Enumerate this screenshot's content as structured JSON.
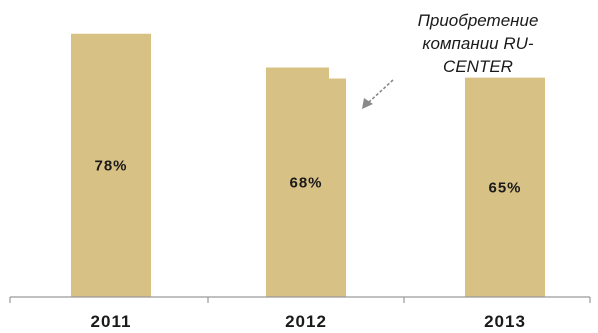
{
  "chart_data": {
    "type": "bar",
    "categories": [
      "2011",
      "2012",
      "2013"
    ],
    "values": [
      78,
      68,
      65
    ],
    "value_labels": [
      "78%",
      "68%",
      "65%"
    ],
    "ylim": [
      0,
      80
    ],
    "grid": false,
    "bar_color": "#d8c184",
    "annotation": {
      "lines": [
        "Приобретение",
        "компании RU-",
        "CENTER"
      ],
      "points_to": "2012"
    }
  }
}
